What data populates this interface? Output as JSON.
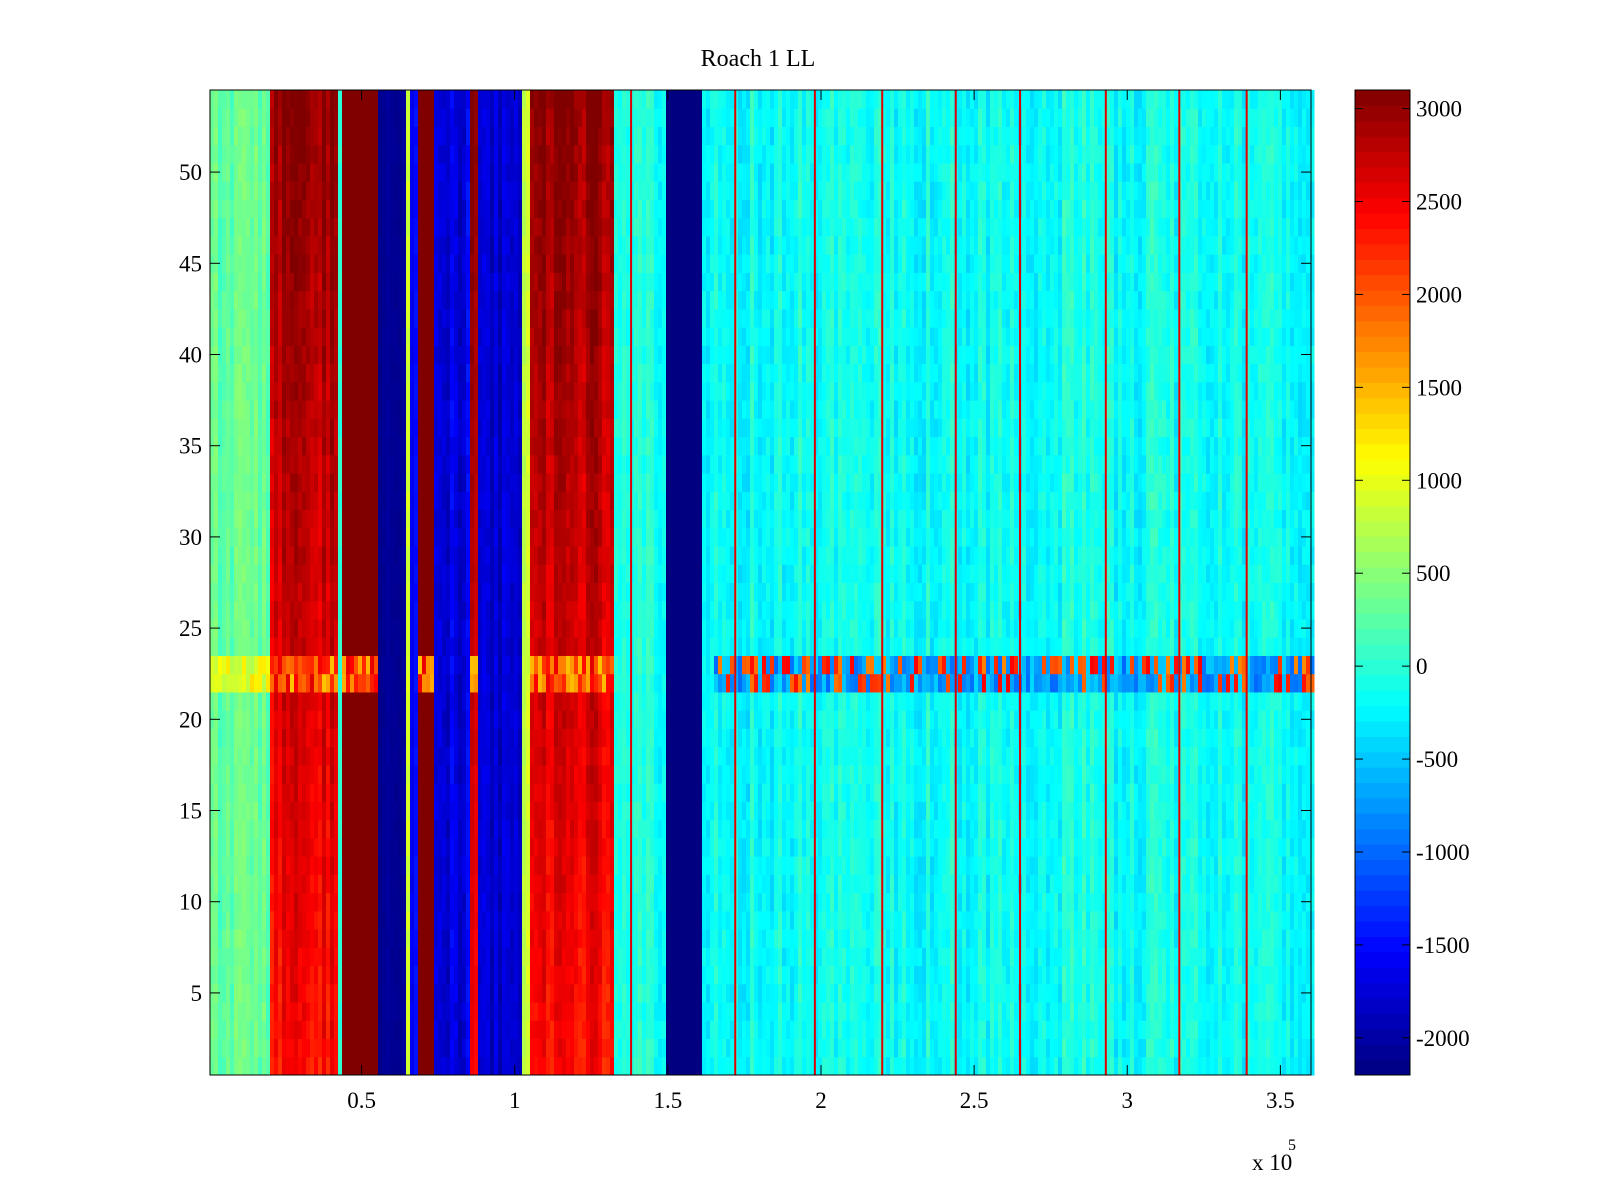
{
  "chart_data": {
    "type": "heatmap",
    "title": "Roach 1 LL",
    "xlabel": "",
    "ylabel": "",
    "x_exponent_label": "x 10",
    "x_exponent_power": "5",
    "xlim": [
      0.005,
      3.6
    ],
    "ylim": [
      0.5,
      54.5
    ],
    "x_ticks": [
      0.5,
      1,
      1.5,
      2,
      2.5,
      3,
      3.5
    ],
    "x_tick_labels": [
      "0.5",
      "1",
      "1.5",
      "2",
      "2.5",
      "3",
      "3.5"
    ],
    "y_ticks": [
      5,
      10,
      15,
      20,
      25,
      30,
      35,
      40,
      45,
      50
    ],
    "y_tick_labels": [
      "5",
      "10",
      "15",
      "20",
      "25",
      "30",
      "35",
      "40",
      "45",
      "50"
    ],
    "rows": 54,
    "colorbar": {
      "colormap": "jet",
      "clim": [
        -2200,
        3100
      ],
      "ticks": [
        -2000,
        -1500,
        -1000,
        -500,
        0,
        500,
        1000,
        1500,
        2000,
        2500,
        3000
      ],
      "tick_labels": [
        "-2000",
        "-1500",
        "-1000",
        "-500",
        "0",
        "500",
        "1000",
        "1500",
        "2000",
        "2500",
        "3000"
      ]
    },
    "background_level": -150,
    "bands": [
      {
        "x_start": 0.005,
        "x_end": 0.195,
        "value": 300,
        "jitter": 300
      },
      {
        "x_start": 0.195,
        "x_end": 0.425,
        "value": 2700,
        "jitter": 350
      },
      {
        "x_start": 0.425,
        "x_end": 0.44,
        "value": 0,
        "jitter": 200
      },
      {
        "x_start": 0.44,
        "x_end": 0.56,
        "value": 3100,
        "jitter": 0
      },
      {
        "x_start": 0.56,
        "x_end": 0.64,
        "value": -2100,
        "jitter": 100
      },
      {
        "x_start": 0.64,
        "x_end": 0.66,
        "value": 800,
        "jitter": 300
      },
      {
        "x_start": 0.66,
        "x_end": 0.68,
        "value": -1500,
        "jitter": 200
      },
      {
        "x_start": 0.68,
        "x_end": 0.74,
        "value": 3100,
        "jitter": 0
      },
      {
        "x_start": 0.74,
        "x_end": 0.86,
        "value": -1700,
        "jitter": 400
      },
      {
        "x_start": 0.86,
        "x_end": 0.88,
        "value": 2800,
        "jitter": 200
      },
      {
        "x_start": 0.88,
        "x_end": 1.03,
        "value": -1800,
        "jitter": 300
      },
      {
        "x_start": 1.03,
        "x_end": 1.05,
        "value": 900,
        "jitter": 300
      },
      {
        "x_start": 1.05,
        "x_end": 1.32,
        "value": 2700,
        "jitter": 350
      },
      {
        "x_start": 1.32,
        "x_end": 1.5,
        "value": -100,
        "jitter": 350
      },
      {
        "x_start": 1.5,
        "x_end": 1.615,
        "value": -2200,
        "jitter": 0
      },
      {
        "x_start": 1.615,
        "x_end": 3.6,
        "value": -150,
        "jitter": 400
      }
    ],
    "horizontal_feature": {
      "rows": [
        22,
        23
      ],
      "x_start": 1.65,
      "x_end": 3.6,
      "values": [
        -1000,
        2500
      ],
      "note_row_values": "alternating dark red and blue stripes"
    },
    "vertical_lines": [
      1.38,
      1.72,
      1.98,
      2.2,
      2.44,
      2.65,
      2.93,
      3.17,
      3.39
    ],
    "vertical_line_value": 2600
  }
}
